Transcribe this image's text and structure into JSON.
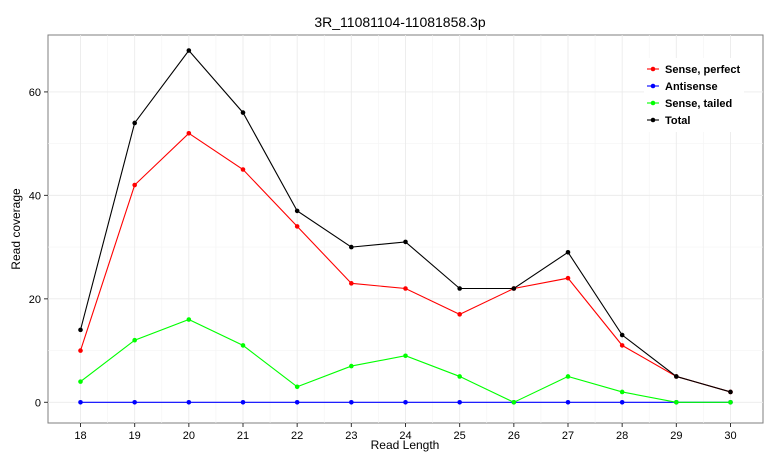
{
  "chart_data": {
    "type": "line",
    "title": "3R_11081104-11081858.3p",
    "xlabel": "Read Length",
    "ylabel": "Read coverage",
    "x": [
      18,
      19,
      20,
      21,
      22,
      23,
      24,
      25,
      26,
      27,
      28,
      29,
      30
    ],
    "xlim": [
      17.4,
      30.6
    ],
    "ylim": [
      -4,
      71
    ],
    "yticks": [
      0,
      20,
      40,
      60
    ],
    "grid": true,
    "legend_position": "top-right",
    "series": [
      {
        "name": "Sense, perfect",
        "color": "#ff0000",
        "values": [
          10,
          42,
          52,
          45,
          34,
          23,
          22,
          17,
          22,
          24,
          11,
          5,
          2
        ]
      },
      {
        "name": "Antisense",
        "color": "#0000ff",
        "values": [
          0,
          0,
          0,
          0,
          0,
          0,
          0,
          0,
          0,
          0,
          0,
          0,
          0
        ]
      },
      {
        "name": "Sense, tailed",
        "color": "#00ff00",
        "values": [
          4,
          12,
          16,
          11,
          3,
          7,
          9,
          5,
          0,
          5,
          2,
          0,
          0
        ]
      },
      {
        "name": "Total",
        "color": "#000000",
        "values": [
          14,
          54,
          68,
          56,
          37,
          30,
          31,
          22,
          22,
          29,
          13,
          5,
          2
        ]
      }
    ]
  }
}
